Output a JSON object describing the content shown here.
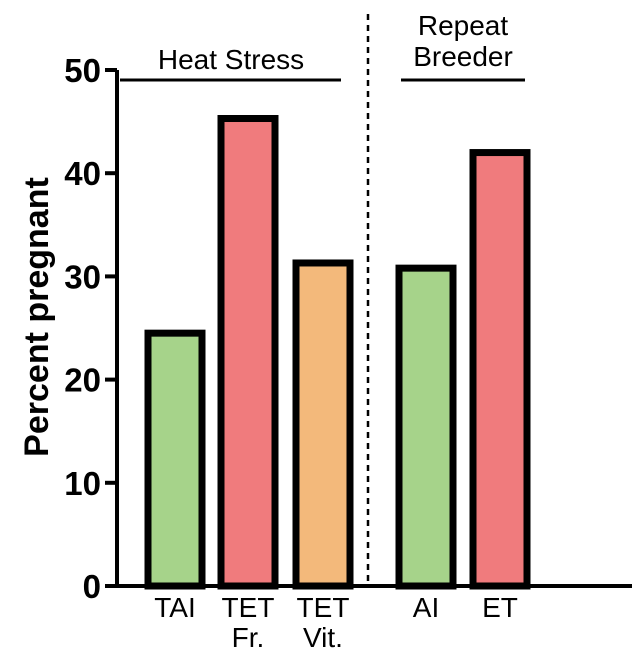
{
  "chart_data": {
    "type": "bar",
    "ylabel": "Percent pregnant",
    "ylim": [
      0,
      50
    ],
    "yticks": [
      "0",
      "10",
      "20",
      "30",
      "40",
      "50"
    ],
    "categories": [
      {
        "lines": [
          "TAI"
        ],
        "value": 24.5,
        "color": "#a6d38a"
      },
      {
        "lines": [
          "TET",
          "Fr."
        ],
        "value": 45.3,
        "color": "#f07b7d"
      },
      {
        "lines": [
          "TET",
          "Vit."
        ],
        "value": 31.3,
        "color": "#f3b97b"
      },
      {
        "lines": [
          "AI"
        ],
        "value": 30.8,
        "color": "#a6d38a"
      },
      {
        "lines": [
          "ET"
        ],
        "value": 42.0,
        "color": "#f07b7d"
      }
    ],
    "groups": [
      {
        "lines": [
          "Heat Stress"
        ]
      },
      {
        "lines": [
          "Repeat",
          "Breeder"
        ]
      }
    ],
    "grid": false,
    "legend": "none"
  }
}
